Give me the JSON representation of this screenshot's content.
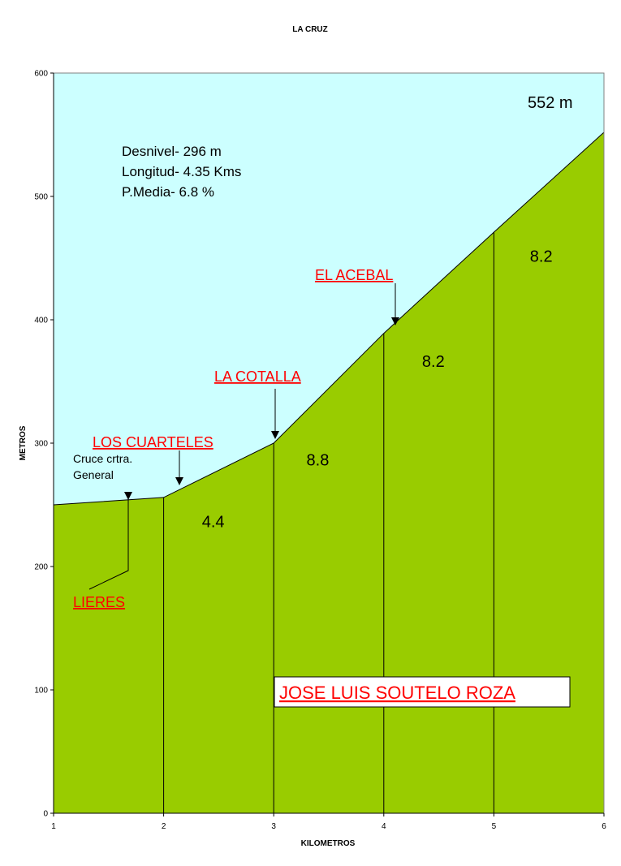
{
  "chart_data": {
    "type": "area",
    "title": "LA CRUZ",
    "xlabel": "KILOMETROS",
    "ylabel": "METROS",
    "xlim": [
      1,
      6
    ],
    "ylim": [
      0,
      600
    ],
    "x_ticks": [
      "1",
      "2",
      "3",
      "4",
      "5",
      "6"
    ],
    "y_ticks": [
      "0",
      "100",
      "200",
      "300",
      "400",
      "500",
      "600"
    ],
    "x": [
      1,
      2,
      3,
      4,
      5,
      6
    ],
    "values": [
      250,
      256,
      300,
      389,
      471,
      552
    ],
    "colors": {
      "sky": "#ccffff",
      "terrain": "#99cc00",
      "labels": "#ff0000"
    },
    "segment_gradients": [
      {
        "label": "4.4",
        "x": 2.45,
        "y": 232
      },
      {
        "label": "8.8",
        "x": 3.4,
        "y": 282
      },
      {
        "label": "8.2",
        "x": 4.45,
        "y": 362
      },
      {
        "label": "8.2",
        "x": 5.43,
        "y": 447
      }
    ],
    "summary_lines": [
      "Desnivel- 296 m",
      "Longitud- 4.35 Kms",
      "P.Media- 6.8 %"
    ],
    "summit_label": "552 m",
    "places": [
      {
        "name": "LIERES",
        "note": ""
      },
      {
        "name": "LOS CUARTELES",
        "note": ""
      },
      {
        "name": "LA COTALLA",
        "note": ""
      },
      {
        "name": "EL ACEBAL",
        "note": ""
      }
    ],
    "crossing_note": [
      "Cruce crtra.",
      "General"
    ],
    "author": "JOSE LUIS SOUTELO ROZA"
  }
}
